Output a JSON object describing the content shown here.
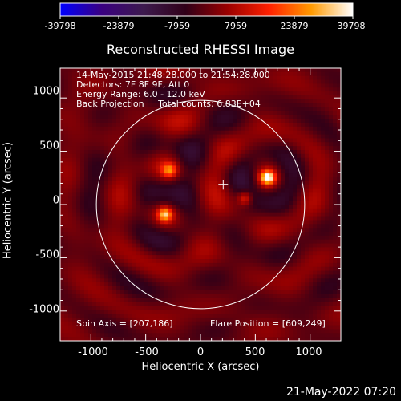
{
  "chart_data": {
    "type": "heatmap",
    "title": "Reconstructed RHESSI Image",
    "xlabel": "Heliocentric X (arcsec)",
    "ylabel": "Heliocentric Y (arcsec)",
    "xlim": [
      -1280,
      1280
    ],
    "ylim": [
      -1280,
      1280
    ],
    "x_ticks": [
      "-1000",
      "-500",
      "0",
      "500",
      "1000"
    ],
    "y_ticks": [
      "1000",
      "500",
      "0",
      "-500",
      "-1000"
    ],
    "colorbar": {
      "min": -39798,
      "max": 39798,
      "tick_labels": [
        "-39798",
        "-23879",
        "-7959",
        "7959",
        "23879",
        "39798"
      ],
      "tick_values": [
        -39798,
        -23879,
        -7959,
        7959,
        23879,
        39798
      ]
    },
    "info_lines": [
      "14-May-2015 21:48:28.000 to 21:54:28.000",
      "Detectors: 7F 8F 9F, Att 0",
      "Energy Range: 6.0 - 12.0 keV",
      "Back Projection     Total counts: 6.83E+04"
    ],
    "spin_axis_label": "Spin Axis = [207,186]",
    "flare_position_label": "Flare Position = [609,249]",
    "spin_axis": [
      207,
      186
    ],
    "flare_position": [
      609,
      249
    ],
    "solar_radius_arcsec": 950,
    "peaks": [
      {
        "x": 609,
        "y": 249,
        "level": 1.0
      },
      {
        "x": -320,
        "y": -90,
        "level": 0.75
      },
      {
        "x": -280,
        "y": 320,
        "level": 0.55
      },
      {
        "x": 400,
        "y": 60,
        "level": 0.45
      }
    ]
  },
  "timestamp": "21-May-2022 07:20",
  "colors": {
    "background": "#000000",
    "colormap": [
      "#0000ff",
      "#3a0080",
      "#3d1a4d",
      "#300018",
      "#9a0000",
      "#ff2000",
      "#ff9a00",
      "#ffffff"
    ]
  }
}
